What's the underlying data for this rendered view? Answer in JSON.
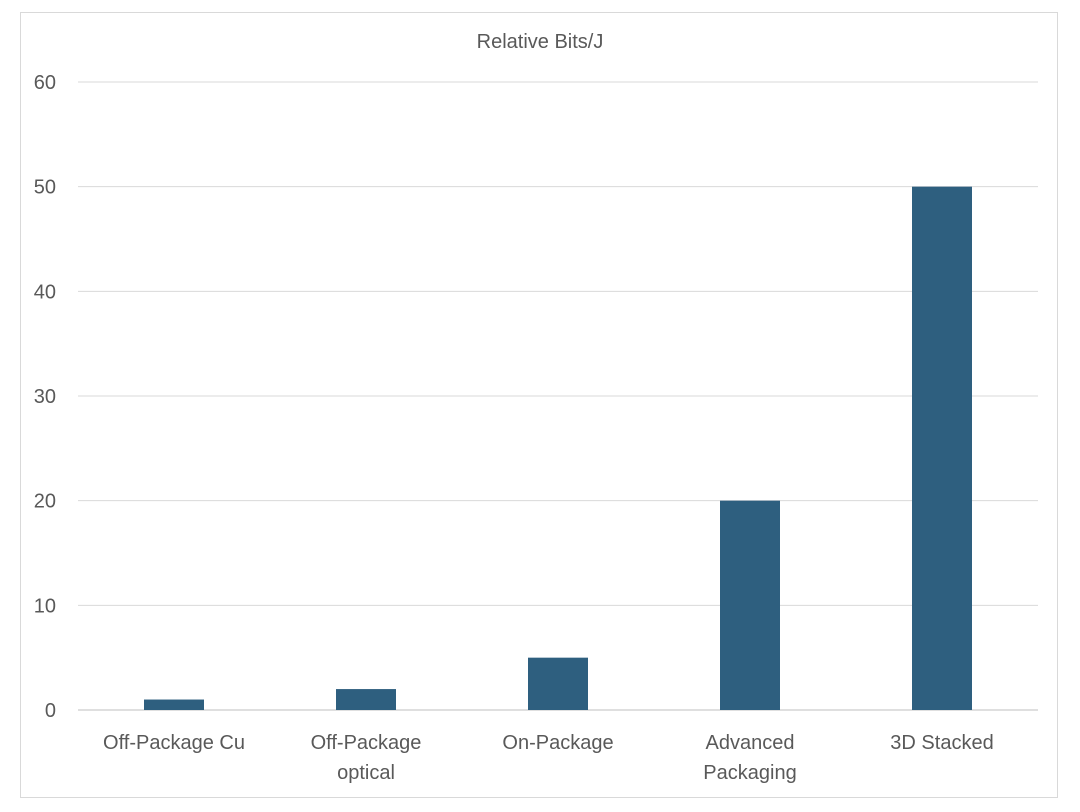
{
  "chart_data": {
    "type": "bar",
    "title": "Relative Bits/J",
    "xlabel": "",
    "ylabel": "",
    "categories": [
      "Off-Package Cu",
      "Off-Package optical",
      "On-Package",
      "Advanced Packaging",
      "3D Stacked"
    ],
    "values": [
      1,
      2,
      5,
      20,
      50
    ],
    "ylim": [
      0,
      60
    ],
    "yticks": [
      0,
      10,
      20,
      30,
      40,
      50,
      60
    ],
    "grid": true,
    "legend": "none",
    "bar_color": "#2e5f7f"
  }
}
